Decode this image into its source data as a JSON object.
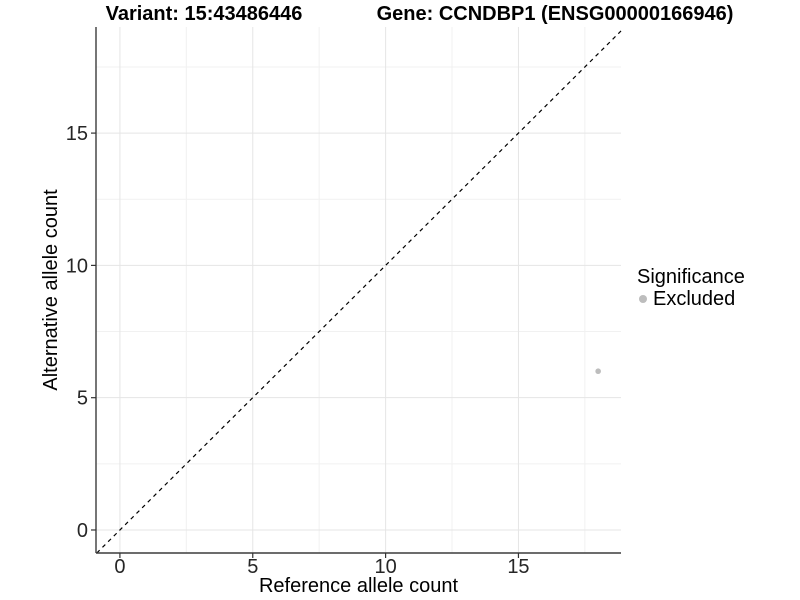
{
  "chart_data": {
    "type": "scatter",
    "title_left": "Variant: 15:43486446",
    "title_right": "Gene: CCNDBP1 (ENSG00000166946)",
    "xlabel": "Reference allele count",
    "ylabel": "Alternative allele count",
    "xlim": [
      -0.9,
      18.86
    ],
    "ylim": [
      -0.87,
      19.01
    ],
    "xticks": [
      0,
      5,
      10,
      15
    ],
    "yticks": [
      0,
      5,
      10,
      15
    ],
    "minor_xticks": [
      2.5,
      7.5,
      12.5,
      17.5
    ],
    "minor_yticks": [
      2.5,
      7.5,
      12.5,
      17.5
    ],
    "grid": true,
    "legend_position": "right",
    "legend_title": "Significance",
    "series": [
      {
        "name": "Excluded",
        "color": "#bdbdbd",
        "points": [
          {
            "x": 18,
            "y": 6
          }
        ]
      }
    ],
    "reference_line": {
      "type": "identity",
      "slope": 1,
      "intercept": 0,
      "style": "dashed",
      "color": "#000000"
    },
    "colors": {
      "grid_major": "#e5e5e5",
      "grid_minor": "#f1f1f1",
      "axis_line": "#3c3c3c",
      "tick_mark": "#333333",
      "tick_text": "#262626",
      "title_text": "#000000"
    }
  }
}
